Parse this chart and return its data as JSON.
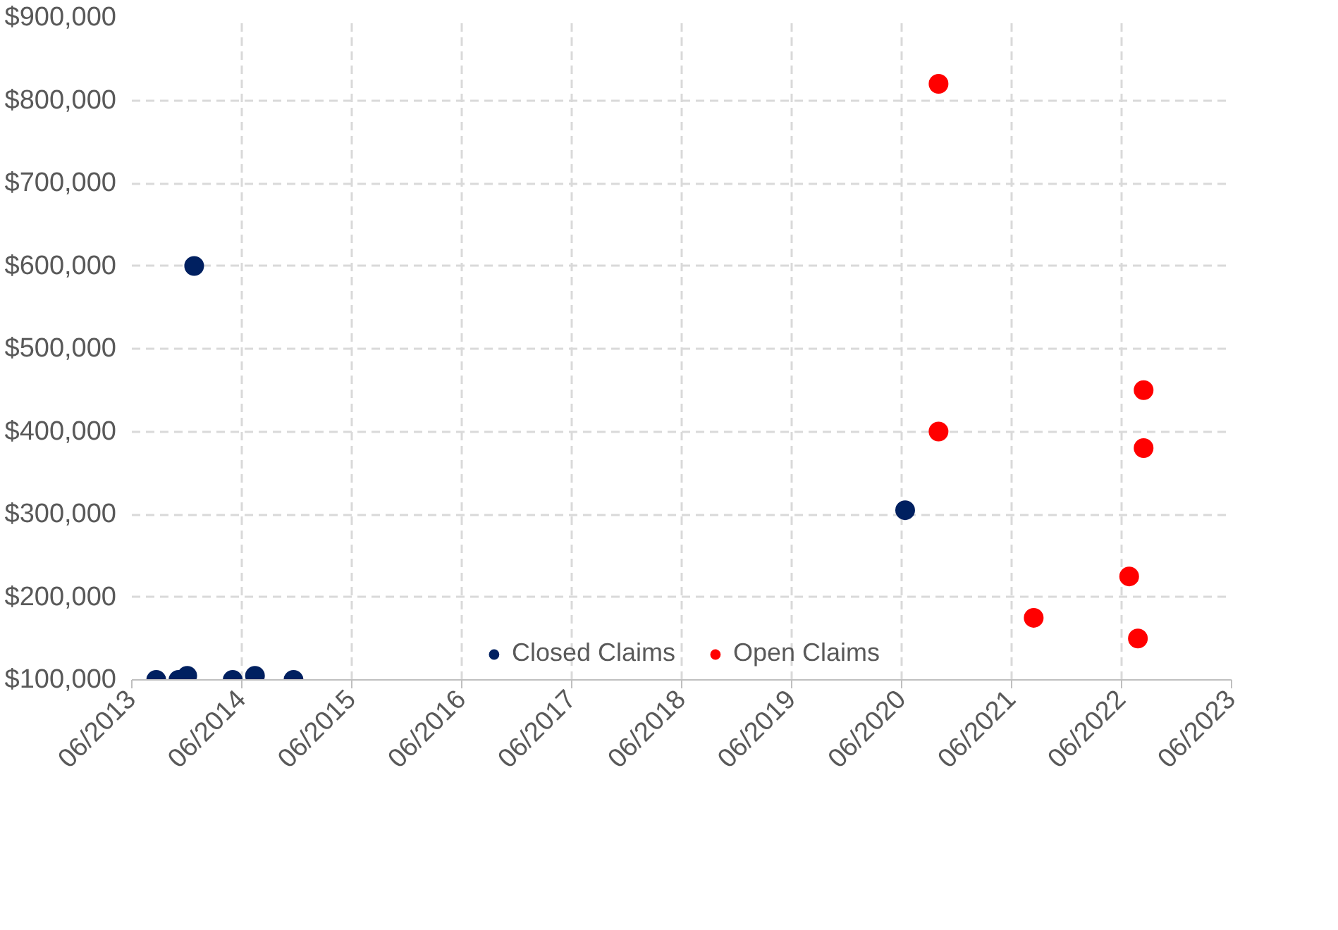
{
  "chart_data": {
    "type": "scatter",
    "marker": "circle",
    "grid": true,
    "legend": "bottom",
    "xlim": [
      "2013-06-01",
      "2023-06-01"
    ],
    "xticks": [
      {
        "value": "2013-06-01",
        "label": "06/2013"
      },
      {
        "value": "2014-06-01",
        "label": "06/2014"
      },
      {
        "value": "2015-06-01",
        "label": "06/2015"
      },
      {
        "value": "2016-06-01",
        "label": "06/2016"
      },
      {
        "value": "2017-06-01",
        "label": "06/2017"
      },
      {
        "value": "2018-06-01",
        "label": "06/2018"
      },
      {
        "value": "2019-06-01",
        "label": "06/2019"
      },
      {
        "value": "2020-06-01",
        "label": "06/2020"
      },
      {
        "value": "2021-06-01",
        "label": "06/2021"
      },
      {
        "value": "2022-06-01",
        "label": "06/2022"
      },
      {
        "value": "2023-06-01",
        "label": "06/2023"
      }
    ],
    "ylim": [
      100000,
      900000
    ],
    "yticks": [
      {
        "value": 100000,
        "label": "$100,000"
      },
      {
        "value": 200000,
        "label": "$200,000"
      },
      {
        "value": 300000,
        "label": "$300,000"
      },
      {
        "value": 400000,
        "label": "$400,000"
      },
      {
        "value": 500000,
        "label": "$500,000"
      },
      {
        "value": 600000,
        "label": "$600,000"
      },
      {
        "value": 700000,
        "label": "$700,000"
      },
      {
        "value": 800000,
        "label": "$800,000"
      },
      {
        "value": 900000,
        "label": "$900,000"
      }
    ],
    "series": [
      {
        "name": "Closed Claims",
        "color": "#002060",
        "x": [
          "2013-08-21",
          "2013-11-03",
          "2013-12-02",
          "2013-12-25",
          "2014-05-02",
          "2014-07-15",
          "2014-11-20",
          "2020-06-12"
        ],
        "values": [
          100000,
          100000,
          105000,
          600000,
          100000,
          105000,
          100000,
          305000
        ]
      },
      {
        "name": "Open Claims",
        "color": "#ff0000",
        "x": [
          "2020-10-01",
          "2020-10-01",
          "2021-08-13",
          "2022-06-26",
          "2022-07-25",
          "2022-08-13",
          "2022-08-13"
        ],
        "values": [
          820000,
          400000,
          175000,
          225000,
          150000,
          450000,
          380000
        ]
      }
    ]
  }
}
